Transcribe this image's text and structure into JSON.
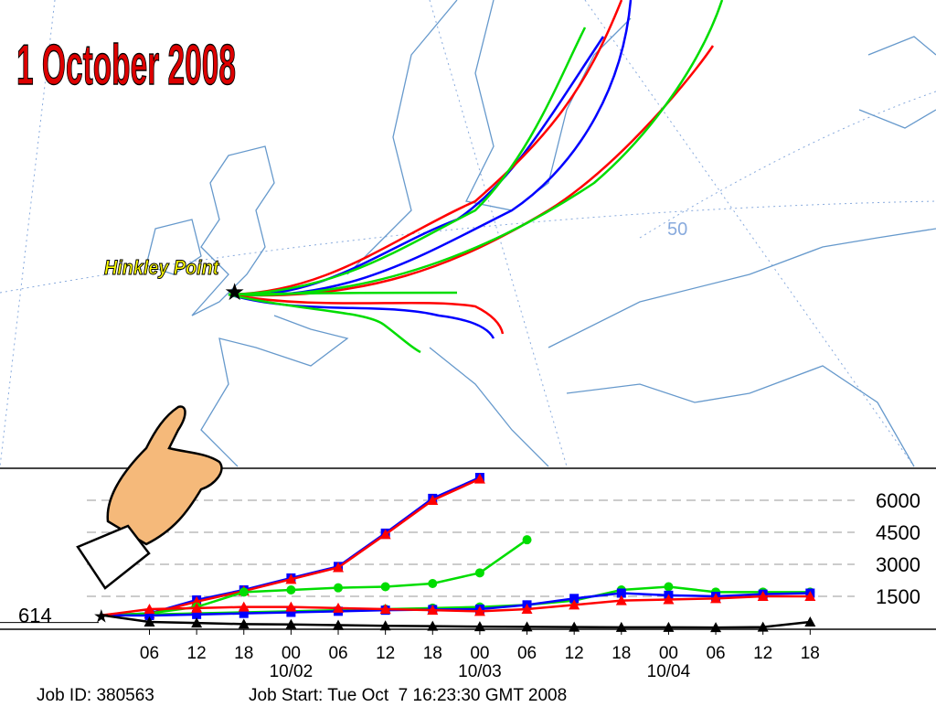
{
  "map": {
    "title": "1 October 2008",
    "source_label": "Hinkley Point",
    "latitude_label": "50"
  },
  "height_chart": {
    "type": "line",
    "xlim": [
      -13,
      106
    ],
    "ylim": [
      0,
      7500
    ],
    "xticks": [
      {
        "value": 6,
        "label": "06"
      },
      {
        "value": 12,
        "label": "12"
      },
      {
        "value": 18,
        "label": "18"
      },
      {
        "value": 24,
        "label": "00"
      },
      {
        "value": 30,
        "label": "06"
      },
      {
        "value": 36,
        "label": "12"
      },
      {
        "value": 42,
        "label": "18"
      },
      {
        "value": 48,
        "label": "00"
      },
      {
        "value": 54,
        "label": "06"
      },
      {
        "value": 60,
        "label": "12"
      },
      {
        "value": 66,
        "label": "18"
      },
      {
        "value": 72,
        "label": "00"
      },
      {
        "value": 78,
        "label": "06"
      },
      {
        "value": 84,
        "label": "12"
      },
      {
        "value": 90,
        "label": "18"
      }
    ],
    "date_ticks": [
      {
        "value": 24,
        "label": "10/02"
      },
      {
        "value": 48,
        "label": "10/03"
      },
      {
        "value": 72,
        "label": "10/04"
      }
    ],
    "yticks": [
      1500,
      3000,
      4500,
      6000
    ],
    "start_height": 614,
    "x": [
      0,
      6,
      12,
      18,
      24,
      30,
      36,
      42,
      48,
      54,
      60,
      66,
      72,
      78,
      84,
      90
    ],
    "series": [
      {
        "color": "#0000ff",
        "marker": "square",
        "values": [
          614,
          700,
          1330,
          1800,
          2360,
          2900,
          4460,
          6090,
          7070,
          null,
          null,
          null,
          null,
          null,
          null,
          null
        ]
      },
      {
        "color": "#ff0000",
        "marker": "triangle",
        "values": [
          614,
          680,
          1250,
          1750,
          2300,
          2850,
          4400,
          6000,
          7000,
          null,
          null,
          null,
          null,
          null,
          null,
          null
        ]
      },
      {
        "color": "#00dd00",
        "marker": "circle",
        "values": [
          614,
          700,
          1000,
          1700,
          1800,
          1900,
          1950,
          2100,
          2600,
          4150,
          null,
          null,
          null,
          null,
          null,
          null
        ]
      },
      {
        "color": "#00dd00",
        "marker": "circle",
        "values": [
          614,
          650,
          700,
          750,
          800,
          850,
          900,
          950,
          1000,
          1100,
          1300,
          1800,
          1950,
          1700,
          1700,
          1700
        ]
      },
      {
        "color": "#0000ff",
        "marker": "square",
        "values": [
          614,
          600,
          650,
          700,
          750,
          800,
          850,
          880,
          900,
          1100,
          1400,
          1650,
          1550,
          1500,
          1600,
          1650
        ]
      },
      {
        "color": "#ff0000",
        "marker": "triangle",
        "values": [
          614,
          900,
          950,
          1000,
          1000,
          950,
          900,
          850,
          800,
          900,
          1100,
          1300,
          1350,
          1400,
          1500,
          1500
        ]
      },
      {
        "color": "#000000",
        "marker": "triangle",
        "values": [
          614,
          300,
          250,
          200,
          180,
          150,
          120,
          100,
          80,
          70,
          60,
          50,
          50,
          40,
          60,
          300
        ]
      }
    ]
  },
  "footer": {
    "job_id": "Job ID: 380563",
    "job_start": "Job Start: Tue Oct  7 16:23:30 GMT 2008"
  }
}
